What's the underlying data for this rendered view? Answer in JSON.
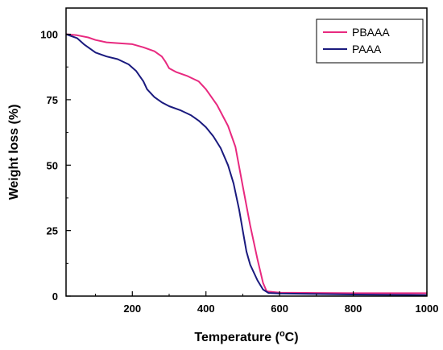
{
  "chart_data": {
    "type": "line",
    "title": "",
    "xlabel": "Temperature (",
    "xlabel_sup": "o",
    "xlabel_suffix": "C)",
    "ylabel": "Weight loss (%)",
    "xlim": [
      20,
      1000
    ],
    "ylim": [
      0,
      110
    ],
    "x_ticks": [
      200,
      400,
      600,
      800,
      1000
    ],
    "y_ticks": [
      0,
      25,
      50,
      75,
      100
    ],
    "grid": false,
    "legend_position": "top-right",
    "series": [
      {
        "name": "PBAAA",
        "color": "#e8297f",
        "points": [
          [
            20,
            100
          ],
          [
            50,
            99.6
          ],
          [
            80,
            98.8
          ],
          [
            100,
            97.8
          ],
          [
            130,
            96.9
          ],
          [
            160,
            96.6
          ],
          [
            200,
            96.2
          ],
          [
            230,
            95
          ],
          [
            260,
            93.5
          ],
          [
            280,
            91.5
          ],
          [
            290,
            89.5
          ],
          [
            300,
            87
          ],
          [
            320,
            85.5
          ],
          [
            350,
            84
          ],
          [
            380,
            82
          ],
          [
            400,
            79
          ],
          [
            430,
            73
          ],
          [
            460,
            65
          ],
          [
            480,
            57
          ],
          [
            500,
            42
          ],
          [
            520,
            27
          ],
          [
            540,
            14
          ],
          [
            555,
            5
          ],
          [
            565,
            1.8
          ],
          [
            600,
            1.3
          ],
          [
            700,
            1.2
          ],
          [
            800,
            1.1
          ],
          [
            900,
            1.1
          ],
          [
            1000,
            1.1
          ]
        ]
      },
      {
        "name": "PAAA",
        "color": "#1a1a7e",
        "points": [
          [
            20,
            100
          ],
          [
            50,
            98.5
          ],
          [
            70,
            96
          ],
          [
            100,
            93
          ],
          [
            130,
            91.5
          ],
          [
            160,
            90.5
          ],
          [
            190,
            88.5
          ],
          [
            210,
            86
          ],
          [
            230,
            82
          ],
          [
            240,
            79
          ],
          [
            260,
            76
          ],
          [
            280,
            74
          ],
          [
            300,
            72.5
          ],
          [
            330,
            71
          ],
          [
            360,
            69
          ],
          [
            380,
            67
          ],
          [
            400,
            64.5
          ],
          [
            420,
            61
          ],
          [
            440,
            56.5
          ],
          [
            460,
            50
          ],
          [
            475,
            43
          ],
          [
            490,
            33
          ],
          [
            500,
            25
          ],
          [
            510,
            17
          ],
          [
            520,
            12
          ],
          [
            540,
            6
          ],
          [
            555,
            2.5
          ],
          [
            570,
            1.2
          ],
          [
            600,
            1
          ],
          [
            700,
            0.8
          ],
          [
            800,
            0.6
          ],
          [
            900,
            0.5
          ],
          [
            1000,
            0.4
          ]
        ]
      }
    ]
  }
}
